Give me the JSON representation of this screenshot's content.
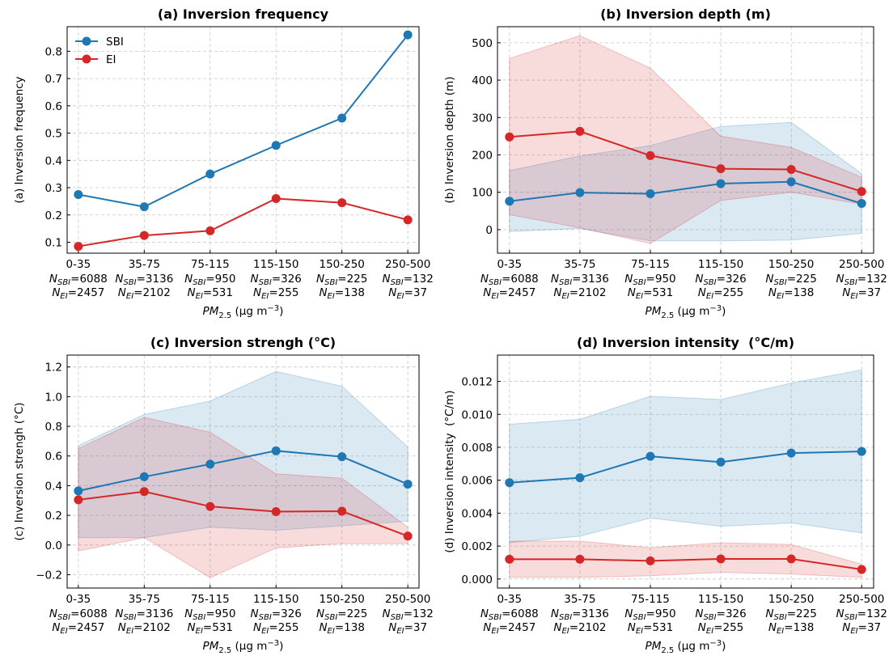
{
  "chart_data": [
    {
      "type": "line",
      "title": "(a) Inversion frequency",
      "ylabel": "(a) Inversion frequency",
      "categories": [
        "0-35",
        "35-75",
        "75-115",
        "115-150",
        "150-250",
        "250-500"
      ],
      "n_labels": [
        {
          "symbol": "N",
          "sub": "SBI",
          "sep": "=",
          "values": [
            6088,
            3136,
            950,
            326,
            225,
            132
          ]
        },
        {
          "symbol": "N",
          "sub": "EI",
          "sep": "=",
          "values": [
            2457,
            2102,
            531,
            255,
            138,
            37
          ]
        }
      ],
      "xlabel": [
        "PM",
        "2.5",
        " (μg m",
        "−3",
        ")"
      ],
      "ylim": [
        0.06,
        0.89
      ],
      "yticks": [
        0.1,
        0.2,
        0.3,
        0.4,
        0.5,
        0.6,
        0.7,
        0.8
      ],
      "grid": true,
      "legend": "upper left",
      "series": [
        {
          "name": "SBI",
          "color": "#1f77b4",
          "values": [
            0.275,
            0.23,
            0.35,
            0.455,
            0.555,
            0.86
          ]
        },
        {
          "name": "EI",
          "color": "#d62728",
          "values": [
            0.085,
            0.125,
            0.142,
            0.26,
            0.245,
            0.182
          ]
        }
      ]
    },
    {
      "type": "line",
      "title": "(b) Inversion depth (m)",
      "ylabel": "(b) Inversion depth (m)",
      "categories": [
        "0-35",
        "35-75",
        "75-115",
        "115-150",
        "150-250",
        "250-500"
      ],
      "n_labels": [
        {
          "symbol": "N",
          "sub": "SBI",
          "sep": "=",
          "values": [
            6088,
            3136,
            950,
            326,
            225,
            132
          ]
        },
        {
          "symbol": "N",
          "sub": "EI",
          "sep": "=",
          "values": [
            2457,
            2102,
            531,
            255,
            138,
            37
          ]
        }
      ],
      "xlabel": [
        "PM",
        "2.5",
        " (μg m",
        "−3",
        ")"
      ],
      "ylim": [
        -63,
        543
      ],
      "yticks": [
        0,
        100,
        200,
        300,
        400,
        500
      ],
      "grid": true,
      "series": [
        {
          "name": "SBI",
          "color": "#1f77b4",
          "values": [
            76,
            99,
            96,
            123,
            128,
            70
          ],
          "lower": [
            -5,
            3,
            -30,
            -30,
            -28,
            -10
          ],
          "upper": [
            158,
            197,
            225,
            276,
            287,
            150
          ]
        },
        {
          "name": "EI",
          "color": "#d62728",
          "values": [
            248,
            263,
            198,
            163,
            161,
            102
          ],
          "lower": [
            40,
            5,
            -37,
            78,
            100,
            68
          ],
          "upper": [
            458,
            519,
            432,
            250,
            220,
            140
          ]
        }
      ]
    },
    {
      "type": "line",
      "title": "(c) Inversion strengh (°C)",
      "ylabel": "(c) Inversion strengh (°C)",
      "categories": [
        "0-35",
        "35-75",
        "75-115",
        "115-150",
        "150-250",
        "250-500"
      ],
      "n_labels": [
        {
          "symbol": "N",
          "sub": "SBI",
          "sep": "=",
          "values": [
            6088,
            3136,
            950,
            326,
            225,
            132
          ]
        },
        {
          "symbol": "N",
          "sub": "EI",
          "sep": "=",
          "values": [
            2457,
            2102,
            531,
            255,
            138,
            37
          ]
        }
      ],
      "xlabel": [
        "PM",
        "2.5",
        " (μg m",
        "−3",
        ")"
      ],
      "ylim": [
        -0.29,
        1.28
      ],
      "yticks": [
        {
          "value": -0.2,
          "label": "−0.2"
        },
        {
          "value": 0,
          "label": "0.0"
        },
        0.2,
        0.4,
        0.6,
        0.8,
        {
          "value": 1,
          "label": "1.0"
        },
        1.2
      ],
      "grid": true,
      "series": [
        {
          "name": "SBI",
          "color": "#1f77b4",
          "values": [
            0.365,
            0.46,
            0.545,
            0.635,
            0.595,
            0.41
          ],
          "lower": [
            0.05,
            0.05,
            0.12,
            0.1,
            0.13,
            0.16
          ],
          "upper": [
            0.67,
            0.88,
            0.97,
            1.17,
            1.07,
            0.66
          ]
        },
        {
          "name": "EI",
          "color": "#d62728",
          "values": [
            0.305,
            0.36,
            0.26,
            0.225,
            0.228,
            0.06
          ],
          "lower": [
            -0.04,
            0.05,
            -0.22,
            -0.02,
            0.01,
            0.01
          ],
          "upper": [
            0.65,
            0.86,
            0.76,
            0.48,
            0.45,
            0.12
          ]
        }
      ]
    },
    {
      "type": "line",
      "title": "(d) Inversion intensity  (°C/m)",
      "ylabel": "(d) Inversion intensity  (°C/m)",
      "categories": [
        "0-35",
        "35-75",
        "75-115",
        "115-150",
        "150-250",
        "250-500"
      ],
      "n_labels": [
        {
          "symbol": "N",
          "sub": "SBI",
          "sep": "=",
          "values": [
            6088,
            3136,
            950,
            326,
            225,
            132
          ]
        },
        {
          "symbol": "N",
          "sub": "EI",
          "sep": "=",
          "values": [
            2457,
            2102,
            531,
            255,
            138,
            37
          ]
        }
      ],
      "xlabel": [
        "PM",
        "2.5",
        " (μg m",
        "−3",
        ")"
      ],
      "ylim": [
        -0.00055,
        0.0136
      ],
      "yticks": [
        {
          "value": 0,
          "label": "0.000"
        },
        {
          "value": 0.002,
          "label": "0.002"
        },
        {
          "value": 0.004,
          "label": "0.004"
        },
        {
          "value": 0.006,
          "label": "0.006"
        },
        {
          "value": 0.008,
          "label": "0.008"
        },
        {
          "value": 0.01,
          "label": "0.010"
        },
        {
          "value": 0.012,
          "label": "0.012"
        }
      ],
      "grid": true,
      "series": [
        {
          "name": "SBI",
          "color": "#1f77b4",
          "values": [
            0.00585,
            0.00615,
            0.00745,
            0.0071,
            0.00765,
            0.00775
          ],
          "lower": [
            0.0022,
            0.0026,
            0.0037,
            0.0032,
            0.0034,
            0.0028
          ],
          "upper": [
            0.0094,
            0.0097,
            0.0111,
            0.0109,
            0.0119,
            0.0127
          ]
        },
        {
          "name": "EI",
          "color": "#d62728",
          "values": [
            0.0012,
            0.0012,
            0.0011,
            0.00122,
            0.00122,
            0.00058
          ],
          "lower": [
            0.0001,
            0.0001,
            0.0002,
            0.0004,
            0.0003,
            0.0001
          ],
          "upper": [
            0.0023,
            0.0023,
            0.0019,
            0.0022,
            0.0021,
            0.0009
          ]
        }
      ]
    }
  ]
}
